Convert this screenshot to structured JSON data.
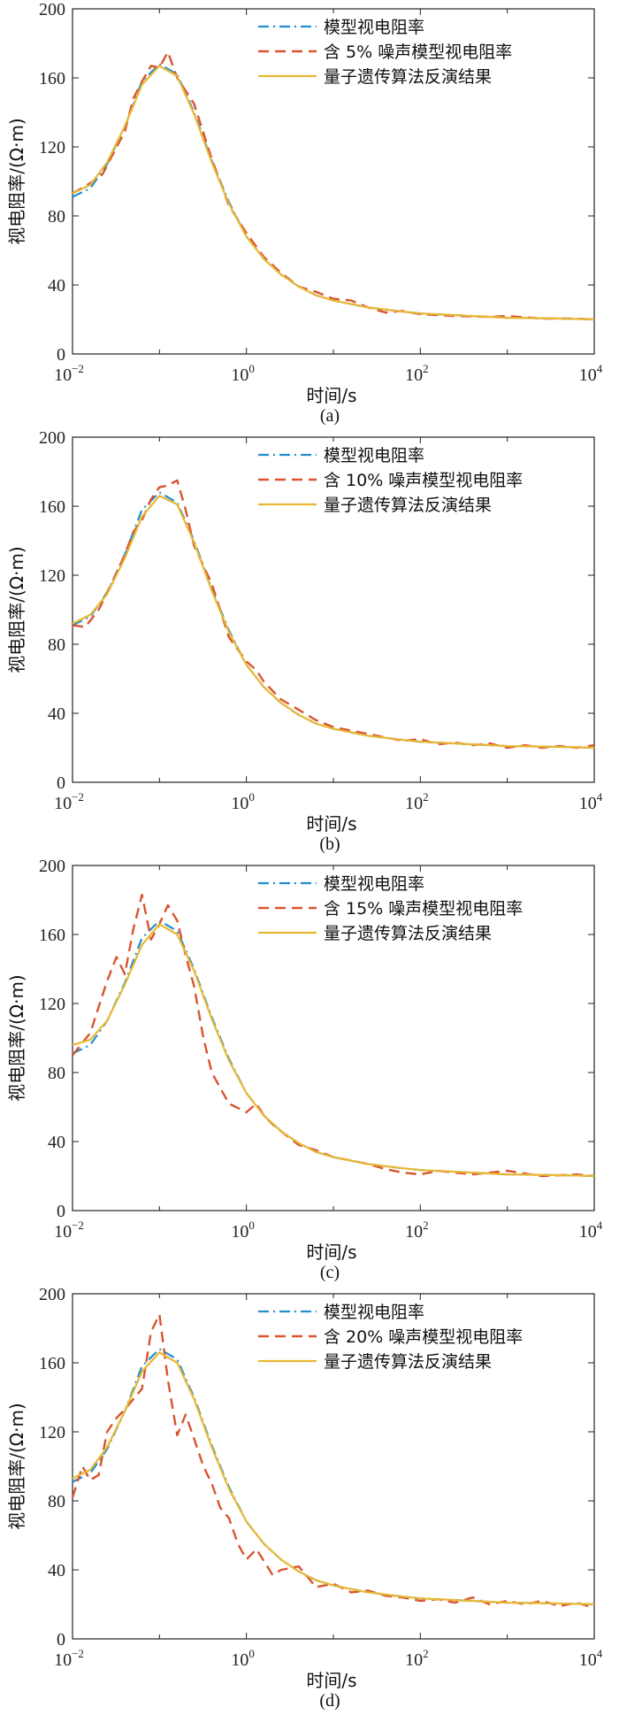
{
  "figure": {
    "panels": [
      {
        "caption": "(a)",
        "xlabel": "时间/s",
        "ylabel": "视电阻率/(Ω·m)",
        "legend": [
          "模型视电阻率",
          "含 5% 噪声模型视电阻率",
          "量子遗传算法反演结果"
        ]
      },
      {
        "caption": "(b)",
        "xlabel": "时间/s",
        "ylabel": "视电阻率/(Ω·m)",
        "legend": [
          "模型视电阻率",
          "含 10% 噪声模型视电阻率",
          "量子遗传算法反演结果"
        ]
      },
      {
        "caption": "(c)",
        "xlabel": "时间/s",
        "ylabel": "视电阻率/(Ω·m)",
        "legend": [
          "模型视电阻率",
          "含 15% 噪声模型视电阻率",
          "量子遗传算法反演结果"
        ]
      },
      {
        "caption": "(d)",
        "xlabel": "时间/s",
        "ylabel": "视电阻率/(Ω·m)",
        "legend": [
          "模型视电阻率",
          "含 20% 噪声模型视电阻率",
          "量子遗传算法反演结果"
        ]
      }
    ]
  },
  "colors": {
    "model": "#1f8fce",
    "noisy": "#d95430",
    "inversion": "#e8b832"
  },
  "chart_data": [
    {
      "type": "line",
      "xscale": "log",
      "xlim": [
        0.01,
        10000
      ],
      "ylim": [
        0,
        200
      ],
      "xticks": [
        "10^-2",
        "10^0",
        "10^2",
        "10^4"
      ],
      "yticks": [
        0,
        40,
        80,
        120,
        160,
        200
      ],
      "series": [
        {
          "name": "模型视电阻率",
          "x": [
            0.01,
            0.016,
            0.025,
            0.04,
            0.063,
            0.1,
            0.16,
            0.25,
            0.4,
            0.63,
            1,
            1.6,
            2.5,
            4,
            6.3,
            10,
            25,
            63,
            100,
            250,
            630,
            1000,
            2500,
            6300,
            10000
          ],
          "y": [
            91,
            96,
            110,
            132,
            158,
            168,
            162,
            140,
            112,
            88,
            68,
            55,
            46,
            39,
            34,
            31,
            27,
            24.5,
            23.5,
            22.5,
            21.5,
            21,
            20.7,
            20.3,
            20
          ]
        },
        {
          "name": "含 5% 噪声模型视电阻率",
          "x": [
            0.01,
            0.016,
            0.022,
            0.03,
            0.04,
            0.05,
            0.063,
            0.08,
            0.1,
            0.125,
            0.16,
            0.25,
            0.4,
            0.63,
            1,
            1.6,
            2.5,
            4,
            6.3,
            10,
            16,
            25,
            40,
            63,
            100,
            250,
            630,
            1000,
            2500,
            6300,
            10000
          ],
          "y": [
            93,
            99,
            104,
            117,
            129,
            148,
            158,
            167,
            166,
            175,
            160,
            145,
            113,
            86,
            70,
            56,
            47,
            39,
            36,
            32,
            31,
            27,
            24,
            25,
            23,
            22,
            21.5,
            22,
            20.5,
            20.5,
            20
          ]
        },
        {
          "name": "量子遗传算法反演结果",
          "x": [
            0.01,
            0.016,
            0.025,
            0.04,
            0.063,
            0.1,
            0.16,
            0.25,
            0.4,
            0.63,
            1,
            1.6,
            2.5,
            4,
            6.3,
            10,
            25,
            63,
            100,
            250,
            630,
            1000,
            2500,
            6300,
            10000
          ],
          "y": [
            93,
            98,
            111,
            132,
            156,
            167,
            161,
            139,
            111,
            87,
            68,
            55,
            46,
            39,
            34,
            31,
            27,
            24.5,
            23.5,
            22.5,
            21.5,
            21,
            20.7,
            20.3,
            20
          ]
        }
      ]
    },
    {
      "type": "line",
      "xscale": "log",
      "xlim": [
        0.01,
        10000
      ],
      "ylim": [
        0,
        200
      ],
      "xticks": [
        "10^-2",
        "10^0",
        "10^2",
        "10^4"
      ],
      "yticks": [
        0,
        40,
        80,
        120,
        160,
        200
      ],
      "series": [
        {
          "name": "模型视电阻率",
          "x": [
            0.01,
            0.016,
            0.025,
            0.04,
            0.063,
            0.1,
            0.16,
            0.25,
            0.4,
            0.63,
            1,
            1.6,
            2.5,
            4,
            6.3,
            10,
            25,
            63,
            100,
            250,
            630,
            1000,
            2500,
            6300,
            10000
          ],
          "y": [
            91,
            96,
            110,
            132,
            158,
            168,
            162,
            140,
            112,
            88,
            68,
            55,
            46,
            39,
            34,
            31,
            27,
            24.5,
            23.5,
            22.5,
            21.5,
            21,
            20.7,
            20.3,
            20
          ]
        },
        {
          "name": "含 10% 噪声模型视电阻率",
          "x": [
            0.01,
            0.014,
            0.02,
            0.03,
            0.04,
            0.05,
            0.063,
            0.08,
            0.1,
            0.125,
            0.16,
            0.2,
            0.25,
            0.4,
            0.63,
            1,
            1.3,
            1.6,
            2.5,
            4,
            6.3,
            10,
            25,
            63,
            100,
            160,
            250,
            400,
            630,
            1000,
            1600,
            2500,
            4000,
            6300,
            10000
          ],
          "y": [
            91,
            90,
            100,
            118,
            132,
            145,
            152,
            164,
            171,
            172,
            175,
            158,
            137,
            115,
            84,
            70,
            65,
            58,
            48,
            42,
            36,
            32,
            28,
            24,
            25,
            22,
            23,
            21.5,
            22.5,
            20,
            21.5,
            20,
            21,
            20,
            21.5
          ]
        },
        {
          "name": "量子遗传算法反演结果",
          "x": [
            0.01,
            0.016,
            0.025,
            0.04,
            0.063,
            0.1,
            0.16,
            0.25,
            0.4,
            0.63,
            1,
            1.6,
            2.5,
            4,
            6.3,
            10,
            25,
            63,
            100,
            250,
            630,
            1000,
            2500,
            6300,
            10000
          ],
          "y": [
            92,
            97,
            109,
            130,
            154,
            166,
            161,
            139,
            111,
            87,
            68,
            55,
            46,
            39,
            34,
            31,
            27,
            24.5,
            23.5,
            22.5,
            21.5,
            21,
            20.7,
            20.3,
            20
          ]
        }
      ]
    },
    {
      "type": "line",
      "xscale": "log",
      "xlim": [
        0.01,
        10000
      ],
      "ylim": [
        0,
        200
      ],
      "xticks": [
        "10^-2",
        "10^0",
        "10^2",
        "10^4"
      ],
      "yticks": [
        0,
        40,
        80,
        120,
        160,
        200
      ],
      "series": [
        {
          "name": "模型视电阻率",
          "x": [
            0.01,
            0.016,
            0.025,
            0.04,
            0.063,
            0.1,
            0.16,
            0.25,
            0.4,
            0.63,
            1,
            1.6,
            2.5,
            4,
            6.3,
            10,
            25,
            63,
            100,
            250,
            630,
            1000,
            2500,
            6300,
            10000
          ],
          "y": [
            91,
            96,
            110,
            132,
            158,
            168,
            162,
            140,
            112,
            88,
            68,
            55,
            46,
            39,
            34,
            31,
            27,
            24.5,
            23.5,
            22.5,
            21.5,
            21,
            20.7,
            20.3,
            20
          ]
        },
        {
          "name": "含 15% 噪声模型视电阻率",
          "x": [
            0.01,
            0.016,
            0.025,
            0.032,
            0.04,
            0.05,
            0.063,
            0.08,
            0.1,
            0.125,
            0.16,
            0.2,
            0.25,
            0.32,
            0.4,
            0.63,
            1,
            1.3,
            1.6,
            2,
            2.5,
            4,
            6.3,
            10,
            16,
            25,
            40,
            63,
            100,
            160,
            250,
            400,
            630,
            1000,
            2500,
            6300,
            10000
          ],
          "y": [
            90,
            103,
            133,
            147,
            137,
            163,
            183,
            157,
            166,
            177,
            168,
            148,
            130,
            100,
            80,
            62,
            57,
            62,
            55,
            50,
            46,
            38,
            35,
            31,
            29,
            27,
            24,
            22,
            21,
            23,
            22,
            21,
            22,
            23,
            20,
            21,
            20
          ]
        },
        {
          "name": "量子遗传算法反演结果",
          "x": [
            0.01,
            0.016,
            0.025,
            0.04,
            0.063,
            0.1,
            0.16,
            0.25,
            0.4,
            0.63,
            1,
            1.6,
            2.5,
            4,
            6.3,
            10,
            25,
            63,
            100,
            250,
            630,
            1000,
            2500,
            6300,
            10000
          ],
          "y": [
            96,
            99,
            110,
            131,
            154,
            166,
            160,
            139,
            111,
            87,
            68,
            55,
            46,
            39,
            34,
            31,
            27,
            24.5,
            23.5,
            22.5,
            21.5,
            21,
            20.7,
            20.3,
            20
          ]
        }
      ]
    },
    {
      "type": "line",
      "xscale": "log",
      "xlim": [
        0.01,
        10000
      ],
      "ylim": [
        0,
        200
      ],
      "xticks": [
        "10^-2",
        "10^0",
        "10^2",
        "10^4"
      ],
      "yticks": [
        0,
        40,
        80,
        120,
        160,
        200
      ],
      "series": [
        {
          "name": "模型视电阻率",
          "x": [
            0.01,
            0.016,
            0.025,
            0.04,
            0.063,
            0.1,
            0.16,
            0.25,
            0.4,
            0.63,
            1,
            1.6,
            2.5,
            4,
            6.3,
            10,
            25,
            63,
            100,
            250,
            630,
            1000,
            2500,
            6300,
            10000
          ],
          "y": [
            91,
            96,
            110,
            132,
            158,
            168,
            162,
            140,
            112,
            88,
            68,
            55,
            46,
            39,
            34,
            31,
            27,
            24.5,
            23.5,
            22.5,
            21.5,
            21,
            20.7,
            20.3,
            20
          ]
        },
        {
          "name": "含 20% 噪声模型视电阻率",
          "x": [
            0.01,
            0.013,
            0.016,
            0.02,
            0.025,
            0.032,
            0.04,
            0.063,
            0.08,
            0.1,
            0.125,
            0.16,
            0.2,
            0.25,
            0.32,
            0.4,
            0.5,
            0.63,
            0.8,
            1,
            1.3,
            1.6,
            2,
            2.5,
            4,
            6.3,
            10,
            16,
            25,
            40,
            63,
            100,
            160,
            250,
            400,
            630,
            1000,
            1600,
            2500,
            4000,
            6300,
            10000
          ],
          "y": [
            82,
            100,
            92,
            95,
            120,
            128,
            133,
            145,
            178,
            188,
            150,
            118,
            130,
            116,
            100,
            90,
            76,
            70,
            55,
            46,
            52,
            45,
            37,
            40,
            42,
            30,
            32,
            27,
            28,
            25,
            24,
            22,
            23,
            21,
            24,
            20,
            22,
            20,
            22,
            19,
            21,
            18
          ]
        },
        {
          "name": "量子遗传算法反演结果",
          "x": [
            0.01,
            0.016,
            0.025,
            0.04,
            0.063,
            0.1,
            0.16,
            0.25,
            0.4,
            0.63,
            1,
            1.6,
            2.5,
            4,
            6.3,
            10,
            25,
            63,
            100,
            250,
            630,
            1000,
            2500,
            6300,
            10000
          ],
          "y": [
            93,
            98,
            111,
            132,
            155,
            166,
            160,
            139,
            111,
            87,
            68,
            55,
            46,
            39,
            34,
            31,
            27,
            24.5,
            23.5,
            22.5,
            21.5,
            21,
            20.7,
            20.3,
            20
          ]
        }
      ]
    }
  ]
}
